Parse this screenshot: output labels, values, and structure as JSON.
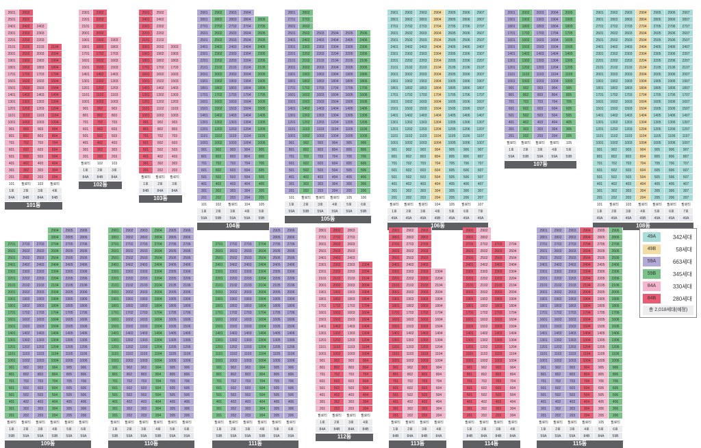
{
  "palette": {
    "49A": "#a9ddd9",
    "49B": "#f3dda4",
    "59A": "#b2a9d8",
    "59B": "#79c289",
    "84A": "#f5b5cd",
    "84B": "#ea5b73"
  },
  "buildings": [
    {
      "label": "101동",
      "cols": [
        {
          "type": "84A",
          "top": 26,
          "low": 2,
          "ground": "101"
        },
        {
          "type": "84B",
          "top": 26,
          "low": 2,
          "ground": "필로티"
        },
        {
          "type": "84A",
          "top": 24,
          "low": 2,
          "ground": "103"
        },
        {
          "type": "84B",
          "top": 21,
          "low": 2,
          "ground": "필로티"
        }
      ]
    },
    {
      "label": "102동",
      "cols": [
        {
          "type": "84A",
          "top": 23,
          "low": 2,
          "ground": "필로티"
        },
        {
          "type": "84B",
          "top": 23,
          "low": 2,
          "ground": "102"
        },
        {
          "type": "84A",
          "top": 19,
          "low": 2,
          "ground": "103"
        }
      ]
    },
    {
      "label": "103동",
      "cols": [
        {
          "type": "84B",
          "top": 25,
          "low": 2,
          "ground": "필로티"
        },
        {
          "type": "84A",
          "top": 25,
          "low": 2,
          "ground": "필로티"
        },
        {
          "type": "84A",
          "top": 20,
          "low": 2,
          "ground": "필로티"
        }
      ]
    },
    {
      "label": "104동",
      "cols": [
        {
          "type": "59A",
          "top": 29,
          "low": 2,
          "ground": "101"
        },
        {
          "type": "59B",
          "top": 29,
          "low": 2,
          "ground": "102"
        },
        {
          "type": "59A",
          "top": 29,
          "low": 2,
          "ground": "필로티"
        },
        {
          "type": "59A",
          "top": 29,
          "low": 2,
          "ground": "104"
        },
        {
          "type": "59B",
          "top": 28,
          "low": 2,
          "ground": "105"
        }
      ]
    },
    {
      "label": "105동",
      "cols": [
        {
          "type": "59A",
          "top": 28,
          "low": 2,
          "ground": "101"
        },
        {
          "type": "59B",
          "top": 28,
          "low": 2,
          "ground": "필로티"
        },
        {
          "type": "59A",
          "top": 25,
          "low": 2,
          "ground": "필로티"
        },
        {
          "type": "59A",
          "top": 25,
          "low": 2,
          "ground": "필로티"
        },
        {
          "type": "59A",
          "top": 25,
          "low": 2,
          "ground": "105"
        },
        {
          "type": "59B",
          "top": 25,
          "low": 2,
          "ground": "106"
        }
      ]
    },
    {
      "label": "106동",
      "cols": [
        {
          "type": "49A",
          "top": 29,
          "low": 2,
          "ground": "필로티"
        },
        {
          "type": "49A",
          "top": 29,
          "low": 2,
          "ground": "필로티"
        },
        {
          "type": "49A",
          "top": 29,
          "low": 2,
          "ground": "필로티"
        },
        {
          "type": "49B",
          "top": 29,
          "low": 2,
          "ground": "104"
        },
        {
          "type": "49A",
          "top": 29,
          "low": 2,
          "ground": "105"
        },
        {
          "type": "49A",
          "top": 29,
          "low": 2,
          "ground": "필로티"
        },
        {
          "type": "49A",
          "top": 29,
          "low": 2,
          "ground": "107"
        }
      ]
    },
    {
      "label": "107동",
      "cols": [
        {
          "type": "59A",
          "top": 20,
          "low": 2,
          "ground": "필로티"
        },
        {
          "type": "59B",
          "top": 20,
          "low": 2,
          "ground": "필로티"
        },
        {
          "type": "59A",
          "top": 20,
          "low": 2,
          "ground": "필로티"
        },
        {
          "type": "59A",
          "top": 20,
          "low": 2,
          "ground": "필로티"
        },
        {
          "type": "59B",
          "top": 20,
          "low": 2,
          "ground": "105"
        }
      ]
    },
    {
      "label": "108동",
      "cols": [
        {
          "type": "49A",
          "top": 29,
          "low": 2,
          "ground": "101"
        },
        {
          "type": "49A",
          "top": 29,
          "low": 2,
          "ground": "필로티"
        },
        {
          "type": "49A",
          "top": 29,
          "low": 2,
          "ground": "103"
        },
        {
          "type": "49B",
          "top": 29,
          "low": 2,
          "ground": "필로티"
        },
        {
          "type": "49A",
          "top": 29,
          "low": 2,
          "ground": "필로티"
        },
        {
          "type": "49A",
          "top": 29,
          "low": 2,
          "ground": "필로티"
        },
        {
          "type": "49A",
          "top": 29,
          "low": 2,
          "ground": "필로티"
        }
      ]
    },
    {
      "label": "109동",
      "cols": [
        {
          "type": "59B",
          "top": 27,
          "low": 2,
          "ground": "필로티"
        },
        {
          "type": "59A",
          "top": 27,
          "low": 2,
          "ground": "필로티"
        },
        {
          "type": "59A",
          "top": 27,
          "low": 2,
          "ground": "필로티"
        },
        {
          "type": "59B",
          "top": 29,
          "low": 2,
          "ground": "필로티"
        },
        {
          "type": "59A",
          "top": 29,
          "low": 2,
          "ground": "필로티"
        },
        {
          "type": "59A",
          "top": 29,
          "low": 2,
          "ground": "필로티"
        }
      ]
    },
    {
      "label": "110동",
      "cols": [
        {
          "type": "59B",
          "top": 29,
          "low": 2,
          "ground": "필로티"
        },
        {
          "type": "59A",
          "top": 29,
          "low": 2,
          "ground": "필로티"
        },
        {
          "type": "59A",
          "top": 29,
          "low": 2,
          "ground": "필로티"
        },
        {
          "type": "59B",
          "top": 29,
          "low": 2,
          "ground": "필로티"
        },
        {
          "type": "59A",
          "top": 29,
          "low": 2,
          "ground": "필로티"
        },
        {
          "type": "59A",
          "top": 29,
          "low": 2,
          "ground": "필로티"
        }
      ]
    },
    {
      "label": "111동",
      "cols": [
        {
          "type": "59B",
          "top": 27,
          "low": 2,
          "ground": "필로티"
        },
        {
          "type": "59A",
          "top": 27,
          "low": 2,
          "ground": "필로티"
        },
        {
          "type": "59A",
          "top": 27,
          "low": 2,
          "ground": "필로티"
        },
        {
          "type": "59B",
          "top": 27,
          "low": 2,
          "ground": "필로티"
        },
        {
          "type": "59A",
          "top": 29,
          "low": 2,
          "ground": "필로티"
        },
        {
          "type": "59A",
          "top": 29,
          "low": 2,
          "ground": "필로티"
        }
      ]
    },
    {
      "label": "112동",
      "cols": [
        {
          "type": "84A",
          "top": 28,
          "low": 2,
          "ground": "필로티"
        },
        {
          "type": "84B",
          "top": 28,
          "low": 2,
          "ground": "필로티"
        },
        {
          "type": "84A",
          "top": 28,
          "low": 2,
          "ground": "필로티"
        },
        {
          "type": "84B",
          "top": 23,
          "low": 2,
          "ground": "필로티"
        }
      ]
    },
    {
      "label": "113동",
      "cols": [
        {
          "type": "84B",
          "top": 29,
          "low": 2,
          "ground": "필로티"
        },
        {
          "type": "84A",
          "top": 29,
          "low": 2,
          "ground": "필로티"
        },
        {
          "type": "84B",
          "top": 29,
          "low": 2,
          "ground": "필로티"
        },
        {
          "type": "84A",
          "top": 23,
          "low": 2,
          "ground": "필로티"
        }
      ]
    },
    {
      "label": "114동",
      "cols": [
        {
          "type": "84B",
          "top": 29,
          "low": 2,
          "ground": "필로티"
        },
        {
          "type": "84A",
          "top": 29,
          "low": 2,
          "ground": "필로티"
        },
        {
          "type": "84B",
          "top": 27,
          "low": 2,
          "ground": "필로티"
        },
        {
          "type": "84A",
          "top": 27,
          "low": 2,
          "ground": "필로티"
        }
      ]
    },
    {
      "label": "115동",
      "cols": [
        {
          "type": "59A",
          "top": 29,
          "low": 2,
          "ground": "필로티"
        },
        {
          "type": "59A",
          "top": 29,
          "low": 2,
          "ground": "필로티"
        },
        {
          "type": "59A",
          "top": 29,
          "low": 2,
          "ground": "필로티"
        },
        {
          "type": "84B",
          "top": 29,
          "low": 2,
          "ground": "필로티"
        },
        {
          "type": "84A",
          "top": 29,
          "low": 2,
          "ground": "105"
        },
        {
          "type": "59B",
          "top": 29,
          "low": 2,
          "ground": "필로티"
        }
      ]
    }
  ],
  "legend": {
    "items": [
      {
        "type": "49A",
        "count": "342세대"
      },
      {
        "type": "49B",
        "count": "58세대"
      },
      {
        "type": "59A",
        "count": "663세대"
      },
      {
        "type": "59B",
        "count": "345세대"
      },
      {
        "type": "84A",
        "count": "330세대"
      },
      {
        "type": "84B",
        "count": "280세대"
      }
    ],
    "total": "총 2,018세대(예정)"
  }
}
